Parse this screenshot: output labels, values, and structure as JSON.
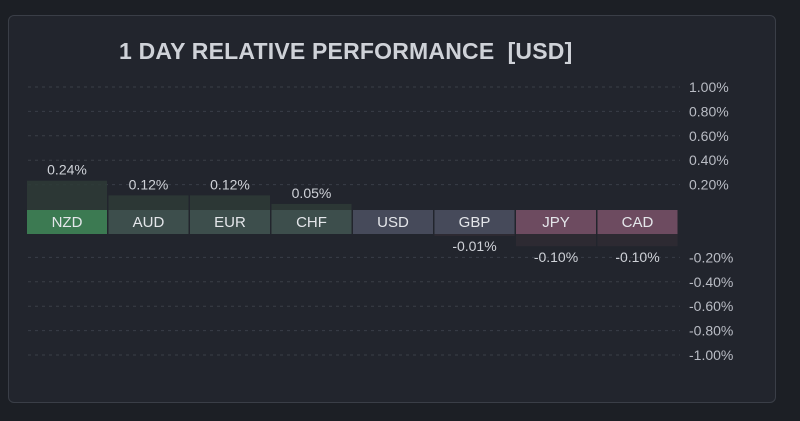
{
  "chart_data": {
    "type": "bar",
    "title": "1 DAY RELATIVE PERFORMANCE  [USD]",
    "categories": [
      "NZD",
      "AUD",
      "EUR",
      "CHF",
      "USD",
      "GBP",
      "JPY",
      "CAD"
    ],
    "values": [
      0.24,
      0.12,
      0.12,
      0.05,
      0.0,
      -0.01,
      -0.1,
      -0.1
    ],
    "value_labels": [
      "0.24%",
      "0.12%",
      "0.12%",
      "0.05%",
      "",
      "-0.01%",
      "-0.10%",
      "-0.10%"
    ],
    "ylim": [
      -1.0,
      1.0
    ],
    "y_ticks": [
      1.0,
      0.8,
      0.6,
      0.4,
      0.2,
      -0.2,
      -0.4,
      -0.6,
      -0.8,
      -1.0
    ],
    "y_tick_labels": [
      "1.00%",
      "0.80%",
      "0.60%",
      "0.40%",
      "0.20%",
      "-0.20%",
      "-0.40%",
      "-0.60%",
      "-0.80%",
      "-1.00%"
    ],
    "grid": true,
    "colors": {
      "positive_strong": "#3c7a52",
      "positive": "#3d4e4c",
      "neutral": "#464a5a",
      "negative": "#6d4b60"
    }
  }
}
